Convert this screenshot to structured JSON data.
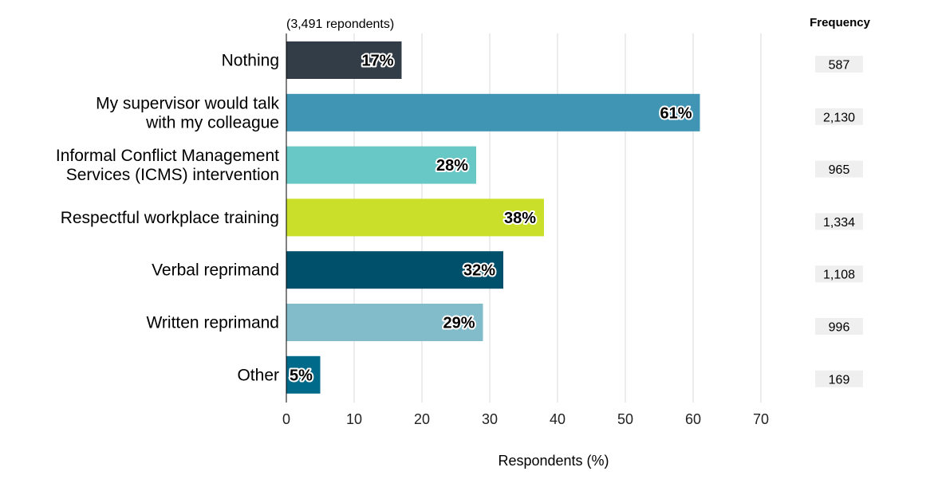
{
  "chart_data": {
    "type": "bar",
    "orientation": "horizontal",
    "note": "(3,491 repondents)",
    "xlabel": "Respondents (%)",
    "ylabel": "",
    "xlim": [
      0,
      70
    ],
    "xticks": [
      0,
      10,
      20,
      30,
      40,
      50,
      60,
      70
    ],
    "grid": true,
    "categories": [
      [
        "Nothing"
      ],
      [
        "My supervisor would talk",
        "with my colleague"
      ],
      [
        "Informal Conflict Management",
        "Services (ICMS) intervention"
      ],
      [
        "Respectful workplace training"
      ],
      [
        "Verbal reprimand"
      ],
      [
        "Written reprimand"
      ],
      [
        "Other"
      ]
    ],
    "values": [
      17,
      61,
      28,
      38,
      32,
      29,
      5
    ],
    "value_labels": [
      "17%",
      "61%",
      "28%",
      "38%",
      "32%",
      "29%",
      "5%"
    ],
    "colors": [
      "#323d48",
      "#4195b4",
      "#67c8c6",
      "#cadf2a",
      "#004f6b",
      "#82bcca",
      "#006a8a"
    ],
    "frequency_header": "Frequency",
    "frequencies": [
      "587",
      "2,130",
      "965",
      "1,334",
      "1,108",
      "996",
      "169"
    ]
  }
}
